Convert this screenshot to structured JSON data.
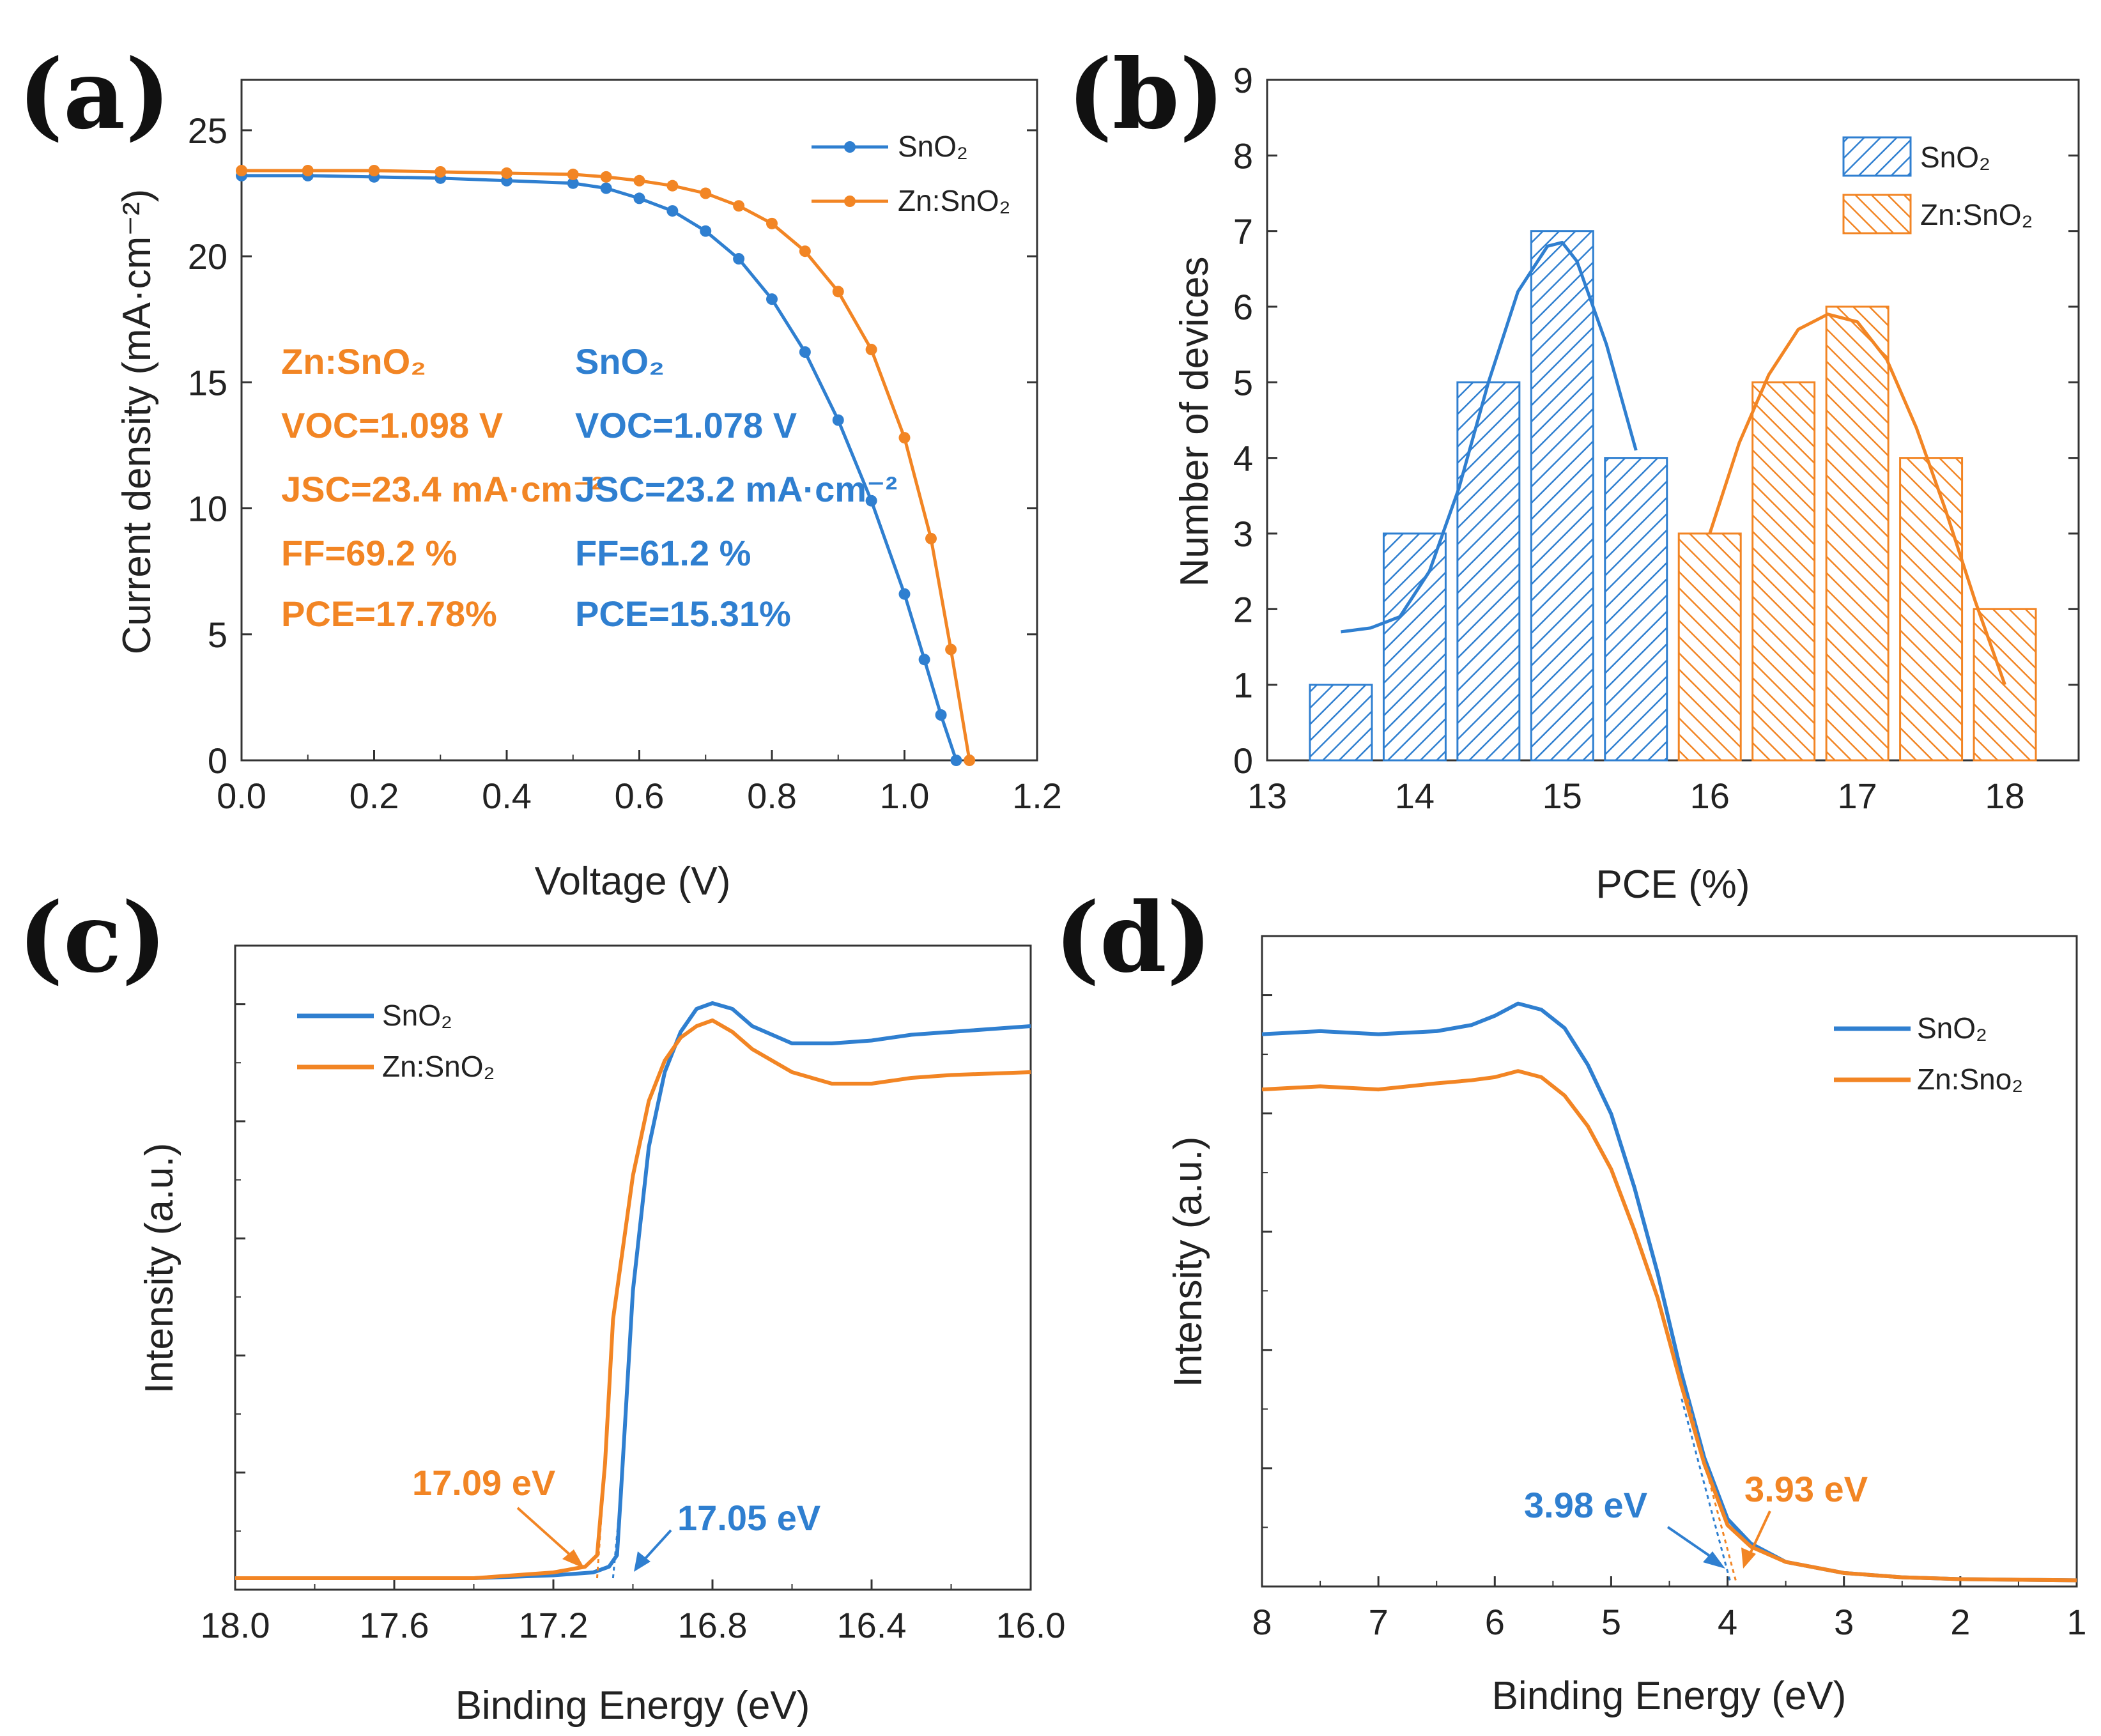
{
  "colors": {
    "blue": "#2f7fd0",
    "orange": "#f28524",
    "axis": "#333333"
  },
  "chart_data": [
    {
      "id": "a",
      "panel_label": "(a)",
      "type": "line",
      "xlabel": "Voltage (V)",
      "ylabel": "Current density (mA·cm⁻²)",
      "xlim": [
        0,
        1.2
      ],
      "ylim": [
        0,
        27
      ],
      "xticks": [
        "0.0",
        "0.2",
        "0.4",
        "0.6",
        "0.8",
        "1.0",
        "1.2"
      ],
      "yticks": [
        "0",
        "5",
        "10",
        "15",
        "20",
        "25"
      ],
      "legend_position": "top-right",
      "series": [
        {
          "name": "SnO₂",
          "color": "#2f7fd0",
          "x": [
            0,
            0.1,
            0.2,
            0.3,
            0.4,
            0.5,
            0.55,
            0.6,
            0.65,
            0.7,
            0.75,
            0.8,
            0.85,
            0.9,
            0.95,
            1.0,
            1.03,
            1.055,
            1.078
          ],
          "y": [
            23.2,
            23.2,
            23.15,
            23.1,
            23.0,
            22.9,
            22.7,
            22.3,
            21.8,
            21.0,
            19.9,
            18.3,
            16.2,
            13.5,
            10.3,
            6.6,
            4.0,
            1.8,
            0
          ]
        },
        {
          "name": "Zn:SnO₂",
          "color": "#f28524",
          "x": [
            0,
            0.1,
            0.2,
            0.3,
            0.4,
            0.5,
            0.55,
            0.6,
            0.65,
            0.7,
            0.75,
            0.8,
            0.85,
            0.9,
            0.95,
            1.0,
            1.04,
            1.07,
            1.098
          ],
          "y": [
            23.4,
            23.4,
            23.4,
            23.35,
            23.3,
            23.25,
            23.15,
            23.0,
            22.8,
            22.5,
            22.0,
            21.3,
            20.2,
            18.6,
            16.3,
            12.8,
            8.8,
            4.4,
            0
          ]
        }
      ],
      "annotations": [
        {
          "lines": [
            "Zn:SnO₂",
            "VOC=1.098 V",
            "JSC=23.4 mA·cm⁻²",
            "FF=69.2 %",
            "PCE=17.78%"
          ],
          "color": "#f28524"
        },
        {
          "lines": [
            "SnO₂",
            "VOC=1.078 V",
            "JSC=23.2 mA·cm⁻²",
            "FF=61.2 %",
            "PCE=15.31%"
          ],
          "color": "#2f7fd0"
        }
      ]
    },
    {
      "id": "b",
      "panel_label": "(b)",
      "type": "bar",
      "xlabel": "PCE (%)",
      "ylabel": "Number of devices",
      "xlim": [
        13,
        18.5
      ],
      "ylim": [
        0,
        9
      ],
      "xticks": [
        "13",
        "14",
        "15",
        "16",
        "17",
        "18"
      ],
      "yticks": [
        "0",
        "1",
        "2",
        "3",
        "4",
        "5",
        "6",
        "7",
        "8",
        "9"
      ],
      "legend_position": "top-right",
      "series": [
        {
          "name": "SnO₂",
          "color": "#2f7fd0",
          "bin_centers": [
            13.5,
            14.0,
            14.5,
            15.0,
            15.5
          ],
          "values": [
            1,
            3,
            5,
            7,
            4
          ],
          "fit_x": [
            13.5,
            13.7,
            13.9,
            14.1,
            14.3,
            14.5,
            14.7,
            14.9,
            15.0,
            15.1,
            15.3,
            15.5
          ],
          "fit_y": [
            1.7,
            1.75,
            1.9,
            2.5,
            3.6,
            5.0,
            6.2,
            6.8,
            6.85,
            6.6,
            5.5,
            4.1
          ]
        },
        {
          "name": "Zn:SnO₂",
          "color": "#f28524",
          "bin_centers": [
            16.0,
            16.5,
            17.0,
            17.5,
            18.0
          ],
          "values": [
            3,
            5,
            6,
            4,
            2
          ],
          "fit_x": [
            16.0,
            16.2,
            16.4,
            16.6,
            16.8,
            17.0,
            17.2,
            17.4,
            17.6,
            17.8,
            18.0
          ],
          "fit_y": [
            3.0,
            4.2,
            5.1,
            5.7,
            5.9,
            5.8,
            5.3,
            4.4,
            3.3,
            2.1,
            1.0
          ]
        }
      ]
    },
    {
      "id": "c",
      "panel_label": "(c)",
      "type": "line",
      "xlabel": "Binding Energy (eV)",
      "ylabel": "Intensity (a.u.)",
      "xlim": [
        18.0,
        16.0
      ],
      "ylim": [
        0,
        1
      ],
      "xticks": [
        "18.0",
        "17.6",
        "17.2",
        "16.8",
        "16.4",
        "16.0"
      ],
      "legend_position": "top-left",
      "series": [
        {
          "name": "SnO₂",
          "color": "#2f7fd0",
          "x": [
            18.0,
            17.4,
            17.2,
            17.1,
            17.06,
            17.04,
            17.03,
            17.0,
            16.96,
            16.92,
            16.88,
            16.84,
            16.8,
            16.75,
            16.7,
            16.6,
            16.5,
            16.4,
            16.3,
            16.2,
            16.0
          ],
          "y": [
            0.0,
            0.0,
            0.005,
            0.01,
            0.02,
            0.04,
            0.15,
            0.5,
            0.75,
            0.88,
            0.95,
            0.99,
            1.0,
            0.99,
            0.96,
            0.93,
            0.93,
            0.935,
            0.945,
            0.95,
            0.96
          ]
        },
        {
          "name": "Zn:SnO₂",
          "color": "#f28524",
          "x": [
            18.0,
            17.4,
            17.2,
            17.12,
            17.09,
            17.07,
            17.05,
            17.0,
            16.96,
            16.92,
            16.88,
            16.84,
            16.8,
            16.75,
            16.7,
            16.6,
            16.5,
            16.4,
            16.3,
            16.2,
            16.0
          ],
          "y": [
            0.0,
            0.0,
            0.01,
            0.02,
            0.04,
            0.2,
            0.45,
            0.7,
            0.83,
            0.9,
            0.94,
            0.96,
            0.97,
            0.95,
            0.92,
            0.88,
            0.86,
            0.86,
            0.87,
            0.875,
            0.88
          ]
        }
      ],
      "annotations": [
        {
          "text": "17.09 eV",
          "color": "#f28524"
        },
        {
          "text": "17.05 eV",
          "color": "#2f7fd0"
        }
      ]
    },
    {
      "id": "d",
      "panel_label": "(d)",
      "type": "line",
      "xlabel": "Binding Energy (eV)",
      "ylabel": "Intensity (a.u.)",
      "xlim": [
        8,
        1
      ],
      "ylim": [
        0,
        1
      ],
      "xticks": [
        "8",
        "7",
        "6",
        "5",
        "4",
        "3",
        "2",
        "1"
      ],
      "legend_position": "top-right",
      "series": [
        {
          "name": "SnO₂",
          "color": "#2f7fd0",
          "x": [
            8.0,
            7.5,
            7.0,
            6.5,
            6.2,
            6.0,
            5.8,
            5.6,
            5.4,
            5.2,
            5.0,
            4.8,
            4.6,
            4.4,
            4.2,
            4.0,
            3.8,
            3.5,
            3.0,
            2.5,
            2.0,
            1.0
          ],
          "y": [
            0.89,
            0.895,
            0.89,
            0.895,
            0.905,
            0.92,
            0.94,
            0.93,
            0.9,
            0.84,
            0.76,
            0.64,
            0.5,
            0.34,
            0.2,
            0.1,
            0.06,
            0.03,
            0.012,
            0.005,
            0.002,
            0.0
          ]
        },
        {
          "name": "Zn:Sno₂",
          "color": "#f28524",
          "x": [
            8.0,
            7.5,
            7.0,
            6.5,
            6.2,
            6.0,
            5.8,
            5.6,
            5.4,
            5.2,
            5.0,
            4.8,
            4.6,
            4.4,
            4.2,
            4.0,
            3.8,
            3.5,
            3.0,
            2.5,
            2.0,
            1.0
          ],
          "y": [
            0.8,
            0.805,
            0.8,
            0.81,
            0.815,
            0.82,
            0.83,
            0.82,
            0.79,
            0.74,
            0.67,
            0.57,
            0.46,
            0.32,
            0.19,
            0.09,
            0.055,
            0.03,
            0.012,
            0.005,
            0.002,
            0.0
          ]
        }
      ],
      "annotations": [
        {
          "text": "3.98 eV",
          "color": "#2f7fd0"
        },
        {
          "text": "3.93 eV",
          "color": "#f28524"
        }
      ]
    }
  ]
}
